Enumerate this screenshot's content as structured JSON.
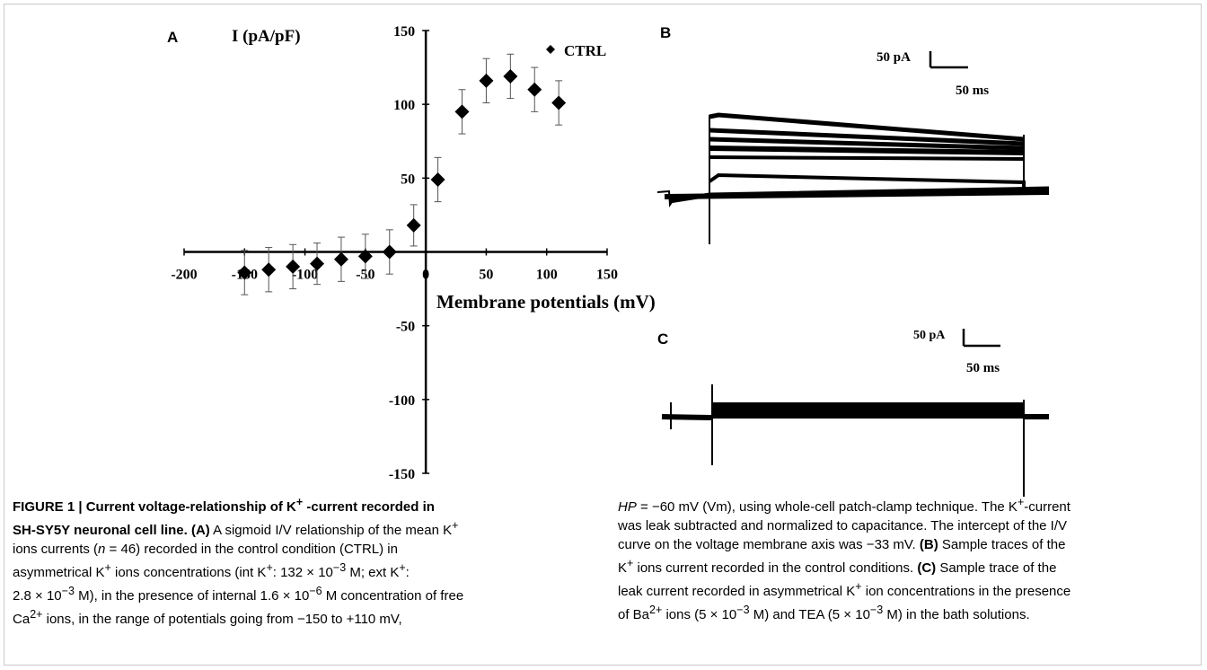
{
  "panels": {
    "a": "A",
    "b": "B",
    "c": "C"
  },
  "scale_b": {
    "current": "50 pA",
    "time": "50 ms"
  },
  "scale_c": {
    "current": "50 pA",
    "time": "50 ms"
  },
  "chart_data": {
    "type": "scatter",
    "ylabel": "I (pA/pF)",
    "xlabel": "Membrane potentials (mV)",
    "xlim": [
      -200,
      150
    ],
    "ylim": [
      -150,
      150
    ],
    "x_ticks": [
      "-200",
      "-150",
      "-100",
      "-50",
      "0",
      "50",
      "100",
      "150"
    ],
    "y_ticks": [
      "150",
      "100",
      "50",
      "0",
      "-50",
      "-100",
      "-150"
    ],
    "grid": false,
    "legend_position": "top-right",
    "series": [
      {
        "name": "CTRL",
        "marker": "diamond",
        "color": "#000000",
        "x": [
          -150,
          -130,
          -110,
          -90,
          -70,
          -50,
          -30,
          -10,
          10,
          30,
          50,
          70,
          90,
          110
        ],
        "y": [
          -14,
          -12,
          -10,
          -8,
          -5,
          -3,
          0,
          18,
          49,
          95,
          116,
          119,
          110,
          101
        ],
        "error": [
          15,
          15,
          15,
          14,
          15,
          15,
          15,
          14,
          15,
          15,
          15,
          15,
          15,
          15
        ]
      }
    ]
  },
  "caption": {
    "left": {
      "line1_bold": "FIGURE 1 | Current voltage-relationship of K",
      "line1_sup": "+",
      "line1_bold_end": " -current recorded in",
      "line2_bold": "SH-SY5Y neuronal cell line. (A)",
      "line2_text": " A sigmoid I/V relationship of the mean K",
      "line2_sup": "+",
      "line3_text_a": "ions currents (",
      "line3_italic": "n",
      "line3_text_b": " = 46) recorded in the control condition (CTRL) in",
      "line4_text_a": "asymmetrical K",
      "line4_sup1": "+",
      "line4_text_b": " ions concentrations (int K",
      "line4_sup2": "+",
      "line4_text_c": ": 132 × 10",
      "line4_sup3": "−3",
      "line4_text_d": " M; ext K",
      "line4_sup4": "+",
      "line4_text_e": ":",
      "line5_text_a": "2.8 × 10",
      "line5_sup1": "−3",
      "line5_text_b": " M), in the presence of internal 1.6 × 10",
      "line5_sup2": "−6",
      "line5_text_c": " M concentration of free",
      "line6_text_a": "Ca",
      "line6_sup": "2+",
      "line6_text_b": " ions, in the range of potentials going from −150 to +110 mV,"
    },
    "right": {
      "line1_italic": "HP",
      "line1_text_a": " = −60 mV (Vm), using whole-cell patch-clamp technique. The K",
      "line1_sup": "+",
      "line1_text_b": "-current",
      "line2_text": "was leak subtracted and normalized to capacitance. The intercept of the I/V",
      "line3_text_a": "curve on the voltage membrane axis was −33 mV. ",
      "line3_bold": "(B)",
      "line3_text_b": " Sample traces of the",
      "line4_text_a": "K",
      "line4_sup": "+",
      "line4_text_b": " ions current recorded in the control conditions. ",
      "line4_bold": "(C)",
      "line4_text_c": " Sample trace of the",
      "line5_text_a": "leak current recorded in asymmetrical K",
      "line5_sup": "+",
      "line5_text_b": " ion concentrations in the presence",
      "line6_text_a": "of Ba",
      "line6_sup1": "2+",
      "line6_text_b": " ions (5 × 10",
      "line6_sup2": "−3",
      "line6_text_c": " M) and TEA (5 × 10",
      "line6_sup3": "−3",
      "line6_text_d": " M) in the bath solutions."
    }
  }
}
